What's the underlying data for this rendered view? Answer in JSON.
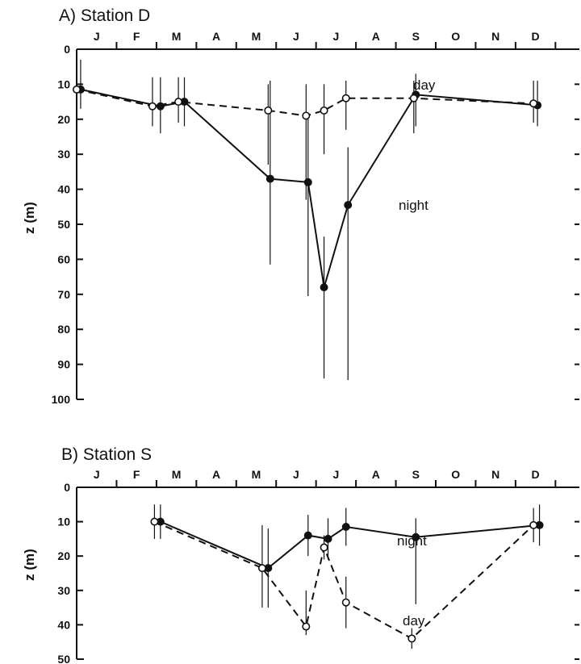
{
  "chart_data": [
    {
      "type": "line",
      "title": "A) Station D",
      "ylabel": "z (m)",
      "xlabel": "",
      "months": [
        "J",
        "F",
        "M",
        "A",
        "M",
        "J",
        "J",
        "A",
        "S",
        "O",
        "N",
        "D"
      ],
      "month_axis_range": [
        0,
        12.6
      ],
      "ylim": [
        0,
        100
      ],
      "yticks": [
        "0",
        "10",
        "20",
        "30",
        "40",
        "50",
        "60",
        "70",
        "80",
        "90",
        "100"
      ],
      "series": [
        {
          "name": "night",
          "marker": "filled",
          "line": "solid",
          "x": [
            0.1,
            2.1,
            2.7,
            4.85,
            5.8,
            6.2,
            6.8,
            8.5,
            11.55
          ],
          "y": [
            11.5,
            16.3,
            15,
            37,
            38,
            68,
            44.5,
            13,
            16
          ],
          "err_low": [
            3,
            8,
            8,
            9,
            20,
            53.5,
            28,
            7,
            9
          ],
          "err_high": [
            17,
            24,
            22,
            61.5,
            70.5,
            94,
            94.5,
            22,
            22
          ]
        },
        {
          "name": "day",
          "marker": "open",
          "line": "dashed",
          "x": [
            0,
            1.9,
            2.55,
            4.8,
            5.75,
            6.2,
            6.75,
            8.45,
            11.45
          ],
          "y": [
            11.5,
            16.3,
            15,
            17.5,
            19,
            17.5,
            14,
            14,
            15.5
          ],
          "err_low": [
            7,
            8,
            8,
            10,
            10,
            10,
            9,
            9,
            9
          ],
          "err_high": [
            17,
            22,
            21,
            33,
            43,
            30,
            23,
            24,
            21
          ]
        }
      ]
    },
    {
      "type": "line",
      "title": "B) Station S",
      "ylabel": "z (m)",
      "xlabel": "",
      "months": [
        "J",
        "F",
        "M",
        "A",
        "M",
        "J",
        "J",
        "A",
        "S",
        "O",
        "N",
        "D"
      ],
      "month_axis_range": [
        0,
        12.6
      ],
      "ylim": [
        0,
        50
      ],
      "yticks": [
        "0",
        "10",
        "20",
        "30",
        "40",
        "50"
      ],
      "series": [
        {
          "name": "night",
          "marker": "filled",
          "line": "solid",
          "x": [
            2.1,
            4.8,
            5.8,
            6.3,
            6.75,
            8.5,
            11.6
          ],
          "y": [
            10,
            23.5,
            14,
            15,
            11.5,
            14.5,
            11
          ],
          "err_low": [
            5,
            12,
            8,
            9,
            6,
            9,
            5
          ],
          "err_high": [
            15,
            35,
            20,
            21,
            17,
            34,
            17
          ]
        },
        {
          "name": "day",
          "marker": "open",
          "line": "dashed",
          "x": [
            1.95,
            4.65,
            5.75,
            6.2,
            6.75,
            8.4,
            11.45
          ],
          "y": [
            10,
            23.5,
            40.5,
            17.5,
            33.5,
            44,
            11
          ],
          "err_low": [
            5,
            11,
            30,
            14,
            26,
            41,
            6
          ],
          "err_high": [
            15,
            35,
            43,
            21,
            41,
            47,
            16
          ]
        }
      ]
    }
  ],
  "annotations": [
    {
      "panel": 0,
      "text": "day"
    },
    {
      "panel": 0,
      "text": "night"
    },
    {
      "panel": 1,
      "text": "night"
    },
    {
      "panel": 1,
      "text": "day"
    }
  ]
}
